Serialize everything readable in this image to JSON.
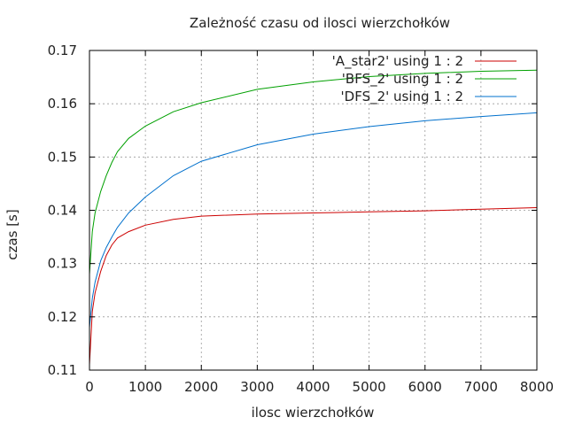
{
  "chart_data": {
    "type": "line",
    "title": "Zależność czasu od ilosci wierzchołków",
    "xlabel": "ilosc wierzchołków",
    "ylabel": "czas [s]",
    "xlim": [
      0,
      8000
    ],
    "ylim": [
      0.11,
      0.17
    ],
    "xticks": [
      "0",
      "1000",
      "2000",
      "3000",
      "4000",
      "5000",
      "6000",
      "7000",
      "8000"
    ],
    "yticks": [
      "0.11",
      "0.12",
      "0.13",
      "0.14",
      "0.15",
      "0.16",
      "0.17"
    ],
    "grid": true,
    "legend_position": "top-right",
    "series": [
      {
        "name": "'A_star2' using 1 : 2",
        "color": "#cc0000",
        "x": [
          0,
          50,
          100,
          200,
          300,
          400,
          500,
          700,
          1000,
          1500,
          2000,
          3000,
          4000,
          5000,
          6000,
          7000,
          8000
        ],
        "y": [
          0.111,
          0.121,
          0.1245,
          0.1285,
          0.1315,
          0.1335,
          0.1348,
          0.136,
          0.1372,
          0.1383,
          0.1389,
          0.1393,
          0.1395,
          0.1397,
          0.1399,
          0.1402,
          0.1405
        ]
      },
      {
        "name": "'BFS_2' using 1 : 2",
        "color": "#00a000",
        "x": [
          0,
          50,
          100,
          200,
          300,
          400,
          500,
          700,
          1000,
          1500,
          2000,
          3000,
          4000,
          5000,
          6000,
          7000,
          8000
        ],
        "y": [
          0.128,
          0.136,
          0.1395,
          0.1435,
          0.1465,
          0.149,
          0.151,
          0.1535,
          0.1558,
          0.1585,
          0.1602,
          0.1627,
          0.1641,
          0.1651,
          0.1657,
          0.1661,
          0.1663
        ]
      },
      {
        "name": "'DFS_2' using 1 : 2",
        "color": "#0070cc",
        "x": [
          0,
          50,
          100,
          200,
          300,
          400,
          500,
          700,
          1000,
          1500,
          2000,
          3000,
          4000,
          5000,
          6000,
          7000,
          8000
        ],
        "y": [
          0.118,
          0.1235,
          0.1265,
          0.1305,
          0.133,
          0.135,
          0.1368,
          0.1395,
          0.1425,
          0.1465,
          0.1492,
          0.1523,
          0.1543,
          0.1557,
          0.1568,
          0.1576,
          0.1583
        ]
      }
    ]
  }
}
